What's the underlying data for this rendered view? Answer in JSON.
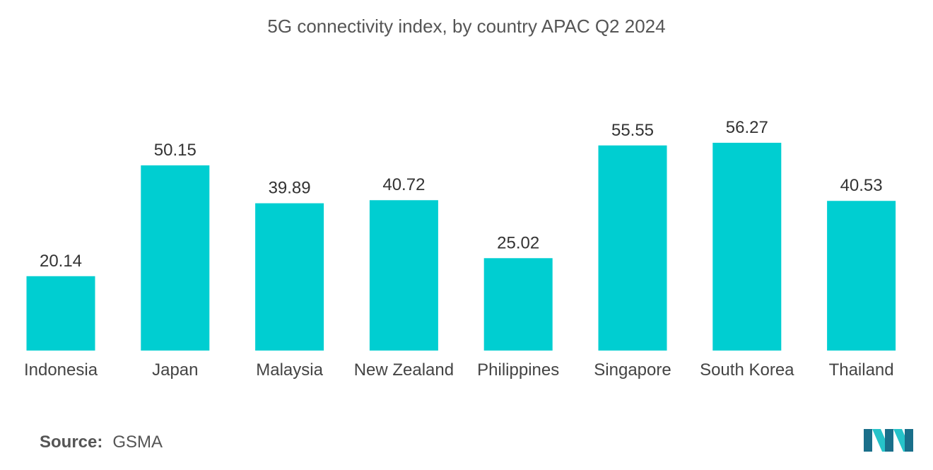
{
  "colors": {
    "bar": "#00CED1",
    "logo_dark": "#1a6f8a",
    "logo_light": "#26c3c9"
  },
  "source": {
    "label": "Source:",
    "value": "GSMA"
  },
  "logo": {
    "icon": "mordor-intelligence-logo-icon"
  },
  "chart_data": {
    "type": "bar",
    "title": "5G connectivity index, by country  APAC Q2 2024",
    "xlabel": "",
    "ylabel": "",
    "categories": [
      "Indonesia",
      "Japan",
      "Malaysia",
      "New Zealand",
      "Philippines",
      "Singapore",
      "South Korea",
      "Thailand"
    ],
    "values": [
      20.14,
      50.15,
      39.89,
      40.72,
      25.02,
      55.55,
      56.27,
      40.53
    ],
    "value_labels": [
      "20.14",
      "50.15",
      "39.89",
      "40.72",
      "25.02",
      "55.55",
      "56.27",
      "40.53"
    ],
    "ylim": [
      0,
      56.27
    ],
    "grid": false,
    "legend": "none"
  }
}
